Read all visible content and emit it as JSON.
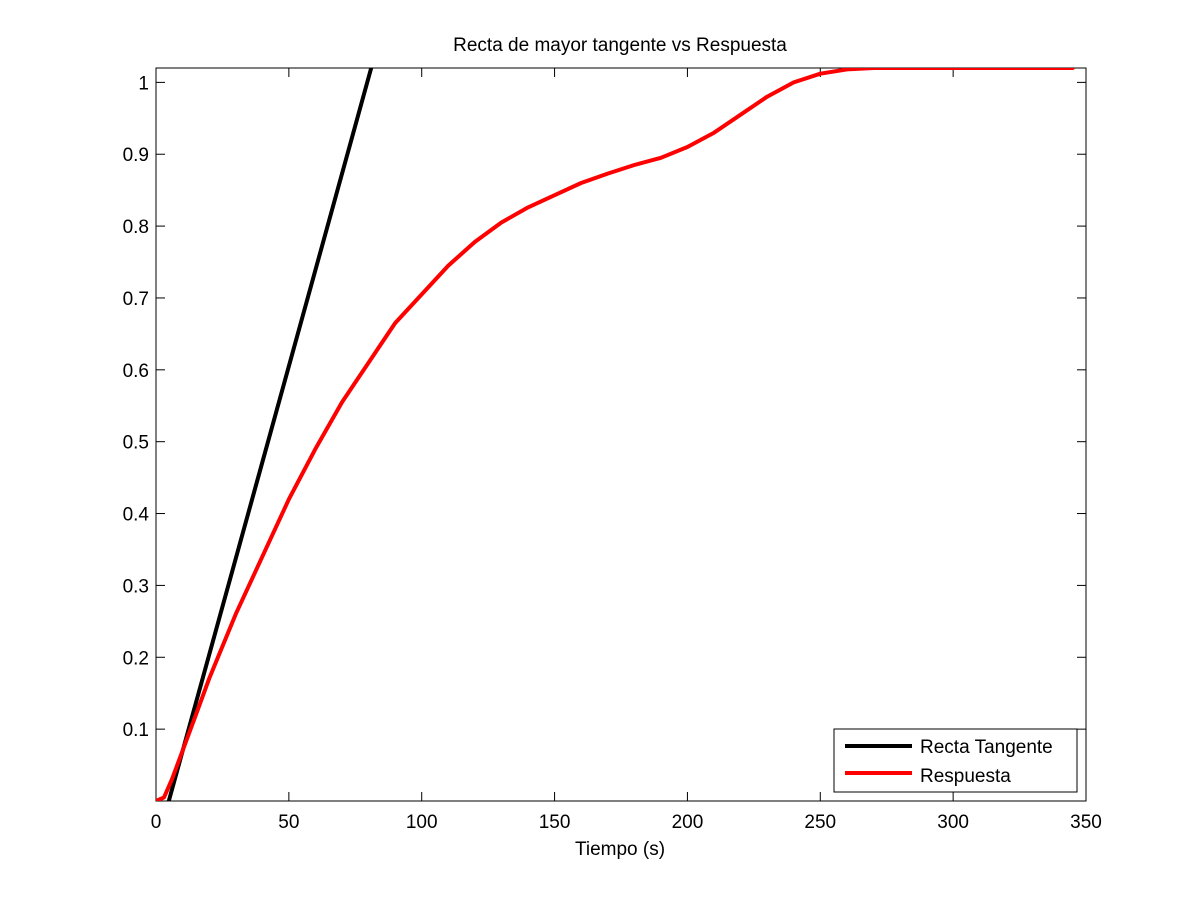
{
  "chart_data": {
    "type": "line",
    "title": "Recta de mayor tangente vs Respuesta",
    "xlabel": "Tiempo (s)",
    "ylabel": "",
    "xlim": [
      0,
      350
    ],
    "ylim": [
      0,
      1.02
    ],
    "xticks": [
      0,
      50,
      100,
      150,
      200,
      250,
      300,
      350
    ],
    "yticks": [
      0.1,
      0.2,
      0.3,
      0.4,
      0.5,
      0.6,
      0.7,
      0.8,
      0.9,
      1
    ],
    "grid": false,
    "legend_position": "bottom-right",
    "series": [
      {
        "name": "Recta Tangente",
        "color": "#000000",
        "x": [
          4.8,
          81
        ],
        "y": [
          0,
          1.02
        ]
      },
      {
        "name": "Respuesta",
        "color": "#ff0000",
        "x": [
          0,
          3,
          6,
          10,
          15,
          20,
          30,
          40,
          50,
          60,
          70,
          80,
          90,
          100,
          110,
          120,
          130,
          140,
          150,
          160,
          170,
          180,
          190,
          200,
          210,
          220,
          230,
          240,
          250,
          260,
          270,
          280,
          290,
          300,
          320,
          345
        ],
        "y": [
          0,
          0.005,
          0.03,
          0.07,
          0.12,
          0.17,
          0.26,
          0.34,
          0.42,
          0.49,
          0.555,
          0.61,
          0.665,
          0.705,
          0.745,
          0.778,
          0.805,
          0.826,
          0.843,
          0.86,
          0.873,
          0.885,
          0.895,
          0.91,
          0.93,
          0.955,
          0.98,
          1.0,
          1.012,
          1.018,
          1.02,
          1.02,
          1.02,
          1.02,
          1.02,
          1.02
        ]
      }
    ]
  }
}
